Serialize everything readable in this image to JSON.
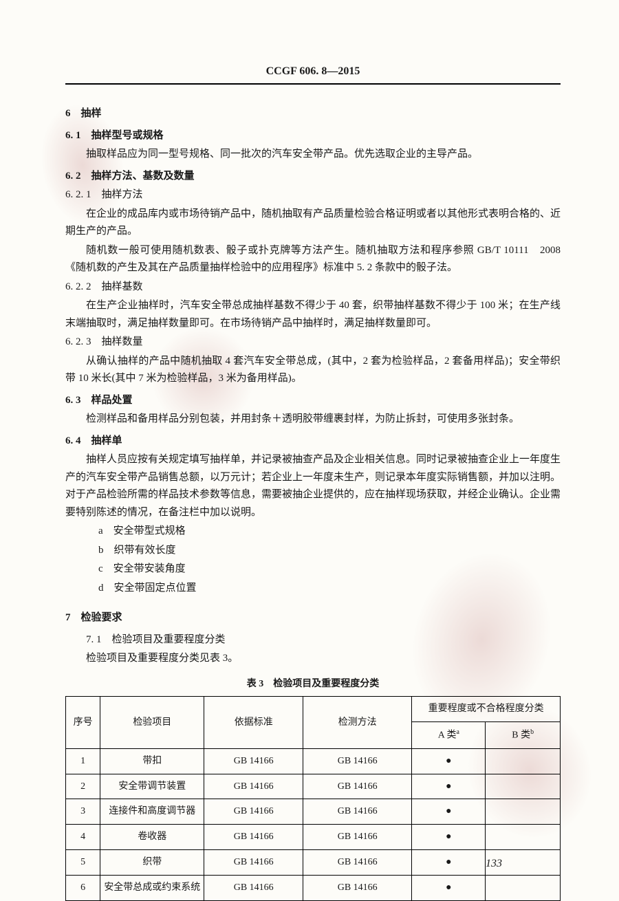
{
  "header": "CCGF 606. 8—2015",
  "s6": {
    "title": "6　抽样"
  },
  "s61": {
    "title": "6. 1　抽样型号或规格",
    "p1": "抽取样品应为同一型号规格、同一批次的汽车安全带产品。优先选取企业的主导产品。"
  },
  "s62": {
    "title": "6. 2　抽样方法、基数及数量"
  },
  "s621": {
    "title": "6. 2. 1　抽样方法",
    "p1": "在企业的成品库内或市场待销产品中，随机抽取有产品质量检验合格证明或者以其他形式表明合格的、近期生产的产品。",
    "p2": "随机数一般可使用随机数表、骰子或扑克牌等方法产生。随机抽取方法和程序参照 GB/T 10111　2008《随机数的产生及其在产品质量抽样检验中的应用程序》标准中 5. 2 条款中的骰子法。"
  },
  "s622": {
    "title": "6. 2. 2　抽样基数",
    "p1": "在生产企业抽样时，汽车安全带总成抽样基数不得少于 40 套，织带抽样基数不得少于 100 米；在生产线末端抽取时，满足抽样数量即可。在市场待销产品中抽样时，满足抽样数量即可。"
  },
  "s623": {
    "title": "6. 2. 3　抽样数量",
    "p1": "从确认抽样的产品中随机抽取 4 套汽车安全带总成，(其中，2 套为检验样品，2 套备用样品)；安全带织带 10 米长(其中 7 米为检验样品，3 米为备用样品)。"
  },
  "s63": {
    "title": "6. 3　样品处置",
    "p1": "检测样品和备用样品分别包装，并用封条＋透明胶带缠裹封样，为防止拆封，可使用多张封条。"
  },
  "s64": {
    "title": "6. 4　抽样单",
    "p1": "抽样人员应按有关规定填写抽样单，并记录被抽查产品及企业相关信息。同时记录被抽查企业上一年度生产的汽车安全带产品销售总额，以万元计；若企业上一年度未生产，则记录本年度实际销售额，并加以注明。对于产品检验所需的样品技术参数等信息，需要被抽企业提供的，应在抽样现场获取，并经企业确认。企业需要特别陈述的情况，在备注栏中加以说明。",
    "list": {
      "a": "a　安全带型式规格",
      "b": "b　织带有效长度",
      "c": "c　安全带安装角度",
      "d": "d　安全带固定点位置"
    }
  },
  "s7": {
    "title": "7　检验要求"
  },
  "s71": {
    "title": "7. 1　检验项目及重要程度分类",
    "p1": "检验项目及重要程度分类见表 3。"
  },
  "table": {
    "caption": "表 3　检验项目及重要程度分类",
    "headers": {
      "col1": "序号",
      "col2": "检验项目",
      "col3": "依据标准",
      "col4": "检测方法",
      "col5": "重要程度或不合格程度分类",
      "col5a": "A 类",
      "col5a_sup": "a",
      "col5b": "B 类",
      "col5b_sup": "b"
    },
    "rows": [
      {
        "n": "1",
        "item": "带扣",
        "std": "GB 14166",
        "method": "GB 14166",
        "a": "●",
        "b": ""
      },
      {
        "n": "2",
        "item": "安全带调节装置",
        "std": "GB 14166",
        "method": "GB 14166",
        "a": "●",
        "b": ""
      },
      {
        "n": "3",
        "item": "连接件和高度调节器",
        "std": "GB 14166",
        "method": "GB 14166",
        "a": "●",
        "b": ""
      },
      {
        "n": "4",
        "item": "卷收器",
        "std": "GB 14166",
        "method": "GB 14166",
        "a": "●",
        "b": ""
      },
      {
        "n": "5",
        "item": "织带",
        "std": "GB 14166",
        "method": "GB 14166",
        "a": "●",
        "b": ""
      },
      {
        "n": "6",
        "item": "安全带总成或约束系统",
        "std": "GB 14166",
        "method": "GB 14166",
        "a": "●",
        "b": ""
      }
    ]
  },
  "pageNum": "133"
}
